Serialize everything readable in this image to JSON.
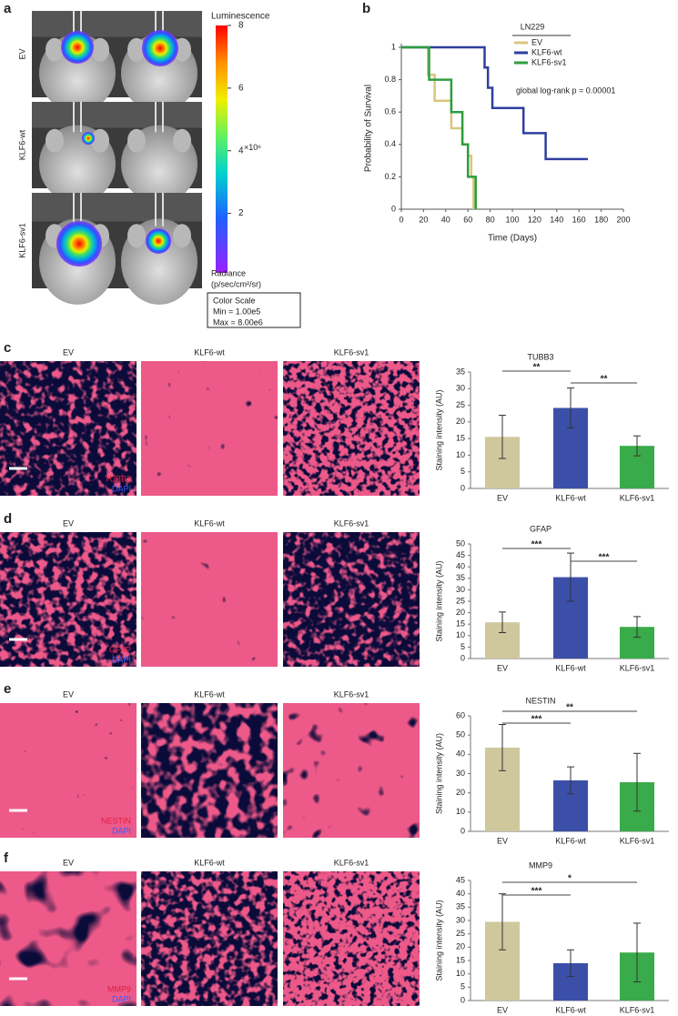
{
  "panel_labels": [
    "a",
    "b",
    "c",
    "d",
    "e",
    "f"
  ],
  "panel_a": {
    "rows": [
      "EV",
      "KLF6-wt",
      "KLF6-sv1"
    ],
    "colorbar": {
      "title": "Luminescence",
      "lim": [
        0.1,
        8
      ],
      "ticks": [
        2,
        4,
        6,
        8
      ],
      "multiplier": "×10⁶",
      "unit_title": "Radiance",
      "unit": "(p/sec/cm²/sr)"
    },
    "color_scale_box": [
      "Color Scale",
      "Min = 1.00e5",
      "Max = 8.00e6"
    ]
  },
  "image_panels": [
    {
      "columns": [
        "EV",
        "KLF6-wt",
        "KLF6-sv1"
      ],
      "stains": [
        "TUBB3",
        "DAPI"
      ]
    },
    {
      "columns": [
        "EV",
        "KLF6-wt",
        "KLF6-sv1"
      ],
      "stains": [
        "GFAP",
        "DAPI"
      ]
    },
    {
      "columns": [
        "EV",
        "KLF6-wt",
        "KLF6-sv1"
      ],
      "stains": [
        "NESTIN",
        "DAPI"
      ]
    },
    {
      "columns": [
        "EV",
        "KLF6-wt",
        "KLF6-sv1"
      ],
      "stains": [
        "MMP9",
        "DAPI"
      ]
    }
  ],
  "chart_data": [
    {
      "type": "line",
      "step": true,
      "title": "LN229",
      "annotation": "global log-rank p = 0.00001",
      "xlabel": "Time (Days)",
      "ylabel": "Probability of Survival",
      "xlim": [
        0,
        200
      ],
      "xticks": [
        0,
        20,
        40,
        60,
        80,
        100,
        120,
        140,
        160,
        180,
        200
      ],
      "ylim": [
        0,
        1
      ],
      "yticks": [
        0,
        0.2,
        0.4,
        0.6,
        0.8,
        1
      ],
      "series": [
        {
          "name": "EV",
          "color": "#d8c77e",
          "x": [
            0,
            24,
            24,
            30,
            30,
            45,
            45,
            55,
            55,
            60,
            60,
            63,
            63,
            65,
            65
          ],
          "values": [
            1,
            1,
            0.83,
            0.83,
            0.67,
            0.67,
            0.5,
            0.5,
            0.4,
            0.4,
            0.33,
            0.33,
            0.2,
            0.2,
            0
          ]
        },
        {
          "name": "KLF6-wt",
          "color": "#2f3f9e",
          "x": [
            0,
            75,
            75,
            78,
            78,
            82,
            82,
            110,
            110,
            130,
            130,
            168
          ],
          "values": [
            1,
            1,
            0.875,
            0.875,
            0.75,
            0.75,
            0.625,
            0.625,
            0.47,
            0.47,
            0.31,
            0.31
          ]
        },
        {
          "name": "KLF6-sv1",
          "color": "#2e9e3e",
          "x": [
            0,
            25,
            25,
            45,
            45,
            55,
            55,
            60,
            60,
            67,
            67
          ],
          "values": [
            1,
            1,
            0.8,
            0.8,
            0.6,
            0.6,
            0.4,
            0.4,
            0.2,
            0.2,
            0
          ]
        }
      ]
    },
    {
      "type": "bar",
      "title": "TUBB3",
      "ylabel": "Staining intensity (AU)",
      "categories": [
        "EV",
        "KLF6-wt",
        "KLF6-sv1"
      ],
      "values": [
        15.5,
        24.2,
        12.8
      ],
      "errors": [
        6.5,
        6,
        3
      ],
      "colors": [
        "#cfc89c",
        "#3c4fa8",
        "#39ab4a"
      ],
      "ylim": [
        0,
        35
      ],
      "yticks": [
        0,
        5,
        10,
        15,
        20,
        25,
        30,
        35
      ],
      "annotations": [
        "**",
        "**"
      ]
    },
    {
      "type": "bar",
      "title": "GFAP",
      "ylabel": "Staining intensity (AU)",
      "categories": [
        "EV",
        "KLF6-wt",
        "KLF6-sv1"
      ],
      "values": [
        15.8,
        35.5,
        13.8
      ],
      "errors": [
        4.5,
        10.5,
        4.5
      ],
      "colors": [
        "#cfc89c",
        "#3c4fa8",
        "#39ab4a"
      ],
      "ylim": [
        0,
        50
      ],
      "yticks": [
        0,
        5,
        10,
        15,
        20,
        25,
        30,
        35,
        40,
        45,
        50
      ],
      "annotations": [
        "***",
        "***"
      ]
    },
    {
      "type": "bar",
      "title": "NESTIN",
      "ylabel": "Staining intensity (AU)",
      "categories": [
        "EV",
        "KLF6-wt",
        "KLF6-sv1"
      ],
      "values": [
        43.5,
        26.5,
        25.5
      ],
      "errors": [
        12,
        7,
        15
      ],
      "colors": [
        "#cfc89c",
        "#3c4fa8",
        "#39ab4a"
      ],
      "ylim": [
        0,
        60
      ],
      "yticks": [
        0,
        10,
        20,
        30,
        40,
        50,
        60
      ],
      "annotations": [
        "***",
        "**"
      ]
    },
    {
      "type": "bar",
      "title": "MMP9",
      "ylabel": "Staining intensity (AU)",
      "categories": [
        "EV",
        "KLF6-wt",
        "KLF6-sv1"
      ],
      "values": [
        29.5,
        14,
        18
      ],
      "errors": [
        10.5,
        5,
        11
      ],
      "colors": [
        "#cfc89c",
        "#3c4fa8",
        "#39ab4a"
      ],
      "ylim": [
        0,
        45
      ],
      "yticks": [
        0,
        5,
        10,
        15,
        20,
        25,
        30,
        35,
        40,
        45
      ],
      "annotations": [
        "***",
        "*"
      ]
    }
  ]
}
